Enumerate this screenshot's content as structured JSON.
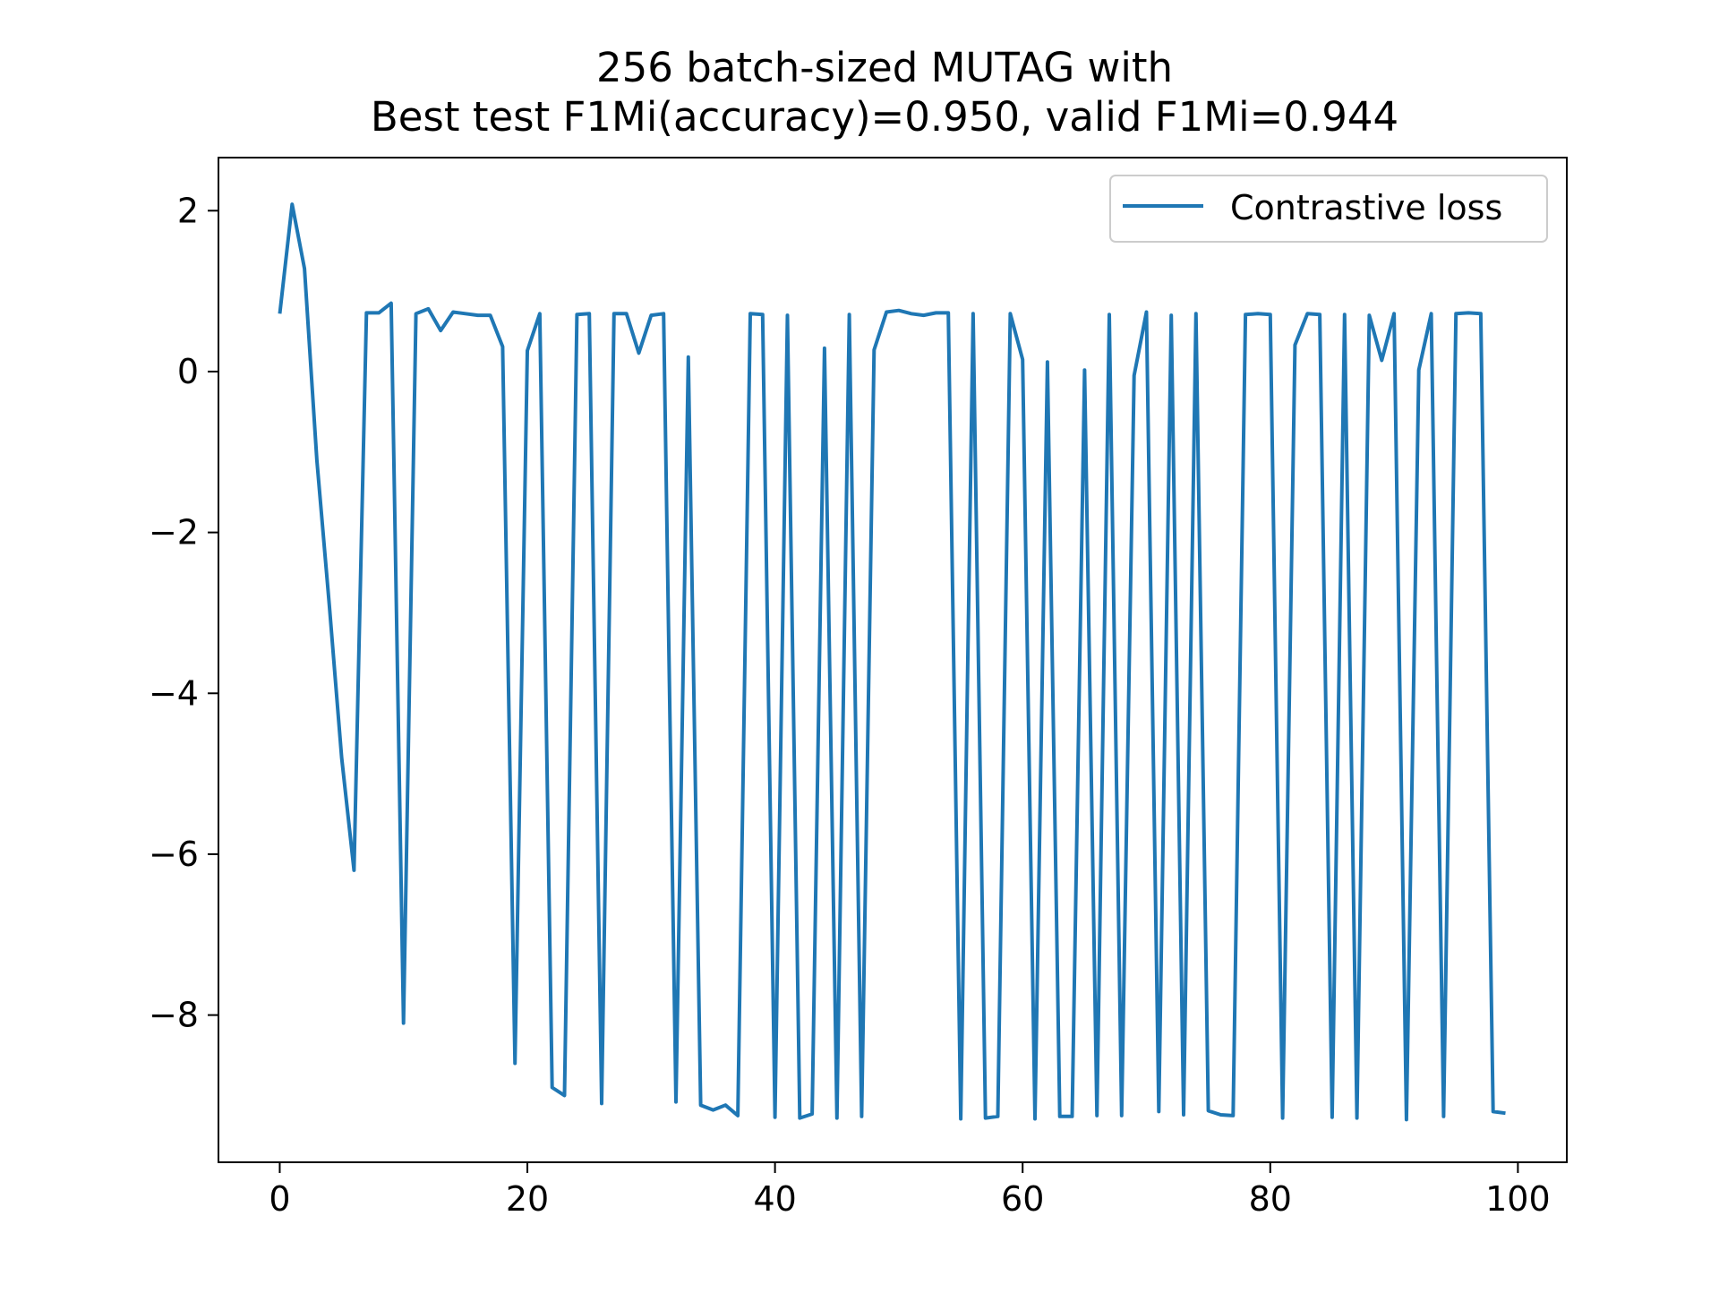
{
  "chart_data": {
    "type": "line",
    "title": [
      "256 batch-sized MUTAG with",
      "Best test F1Mi(accuracy)=0.950, valid F1Mi=0.944"
    ],
    "xlabel": "",
    "ylabel": "",
    "xlim": [
      -4.95,
      103.95
    ],
    "ylim": [
      -9.83,
      2.66
    ],
    "xticks": [
      0,
      20,
      40,
      60,
      80,
      100
    ],
    "xtick_labels": [
      "0",
      "20",
      "40",
      "60",
      "80",
      "100"
    ],
    "yticks": [
      2,
      0,
      -2,
      -4,
      -6,
      -8
    ],
    "ytick_labels": [
      "2",
      "0",
      "−2",
      "−4",
      "−6",
      "−8"
    ],
    "grid": false,
    "legend": {
      "position": "upper right",
      "entries": [
        "Contrastive loss"
      ]
    },
    "series": [
      {
        "name": "Contrastive loss",
        "color": "#1f77b4",
        "x": [
          0,
          1,
          2,
          3,
          4,
          5,
          6,
          7,
          8,
          9,
          10,
          11,
          12,
          13,
          14,
          15,
          16,
          17,
          18,
          19,
          20,
          21,
          22,
          23,
          24,
          25,
          26,
          27,
          28,
          29,
          30,
          31,
          32,
          33,
          34,
          35,
          36,
          37,
          38,
          39,
          40,
          41,
          42,
          43,
          44,
          45,
          46,
          47,
          48,
          49,
          50,
          51,
          52,
          53,
          54,
          55,
          56,
          57,
          58,
          59,
          60,
          61,
          62,
          63,
          64,
          65,
          66,
          67,
          68,
          69,
          70,
          71,
          72,
          73,
          74,
          75,
          76,
          77,
          78,
          79,
          80,
          81,
          82,
          83,
          84,
          85,
          86,
          87,
          88,
          89,
          90,
          91,
          92,
          93,
          94,
          95,
          96,
          97,
          98,
          99
        ],
        "values": [
          0.72,
          2.08,
          1.28,
          -1.1,
          -2.9,
          -4.8,
          -6.2,
          0.73,
          0.73,
          0.85,
          -8.1,
          0.72,
          0.78,
          0.51,
          0.74,
          0.72,
          0.7,
          0.7,
          0.31,
          -8.6,
          0.26,
          0.72,
          -8.9,
          -9.0,
          0.71,
          0.72,
          -9.1,
          0.72,
          0.72,
          0.23,
          0.7,
          0.72,
          -9.08,
          0.18,
          -9.12,
          -9.18,
          -9.12,
          -9.25,
          0.72,
          0.71,
          -9.27,
          0.7,
          -9.28,
          -9.23,
          0.29,
          -9.28,
          0.71,
          -9.26,
          0.27,
          0.74,
          0.76,
          0.72,
          0.7,
          0.73,
          0.73,
          -9.29,
          0.72,
          -9.28,
          -9.26,
          0.72,
          0.15,
          -9.29,
          0.12,
          -9.26,
          -9.26,
          0.02,
          -9.25,
          0.71,
          -9.25,
          -0.05,
          0.74,
          -9.2,
          0.7,
          -9.24,
          0.72,
          -9.19,
          -9.24,
          -9.25,
          0.71,
          0.72,
          0.71,
          -9.28,
          0.33,
          0.72,
          0.71,
          -9.27,
          0.71,
          -9.28,
          0.7,
          0.14,
          0.72,
          -9.3,
          0.02,
          0.72,
          -9.26,
          0.72,
          0.73,
          0.72,
          -9.2,
          -9.22
        ]
      }
    ]
  }
}
